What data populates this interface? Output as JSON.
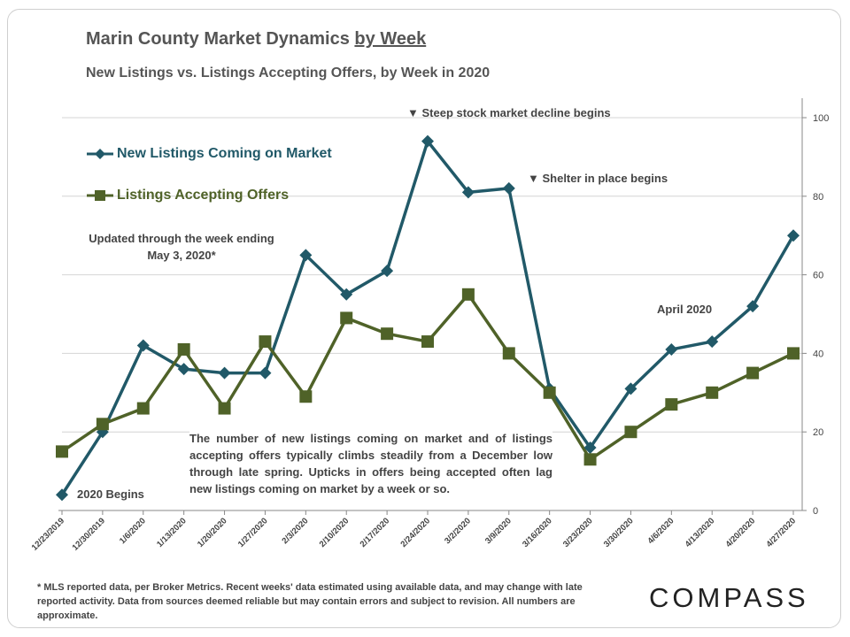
{
  "header": {
    "title_main": "Marin County Market Dynamics ",
    "title_underlined": "by Week",
    "subtitle": "New Listings vs. Listings Accepting Offers, by Week in 2020"
  },
  "annotations": {
    "stock_market": "▼ Steep stock market decline begins",
    "shelter": "▼ Shelter in place begins",
    "updated": "Updated through the week ending May 3, 2020*",
    "april": "April 2020",
    "begins": "2020 Begins",
    "body": "The number of new listings coming on market and of listings accepting offers typically climbs steadily from a December low through late spring. Upticks in offers being accepted often lag new listings coming on market by a week or so."
  },
  "footnote": "* MLS reported data, per Broker Metrics. Recent weeks' data estimated using available data, and may change with late reported activity. Data from sources deemed reliable but may contain errors and subject to revision. All numbers are approximate.",
  "brand": "COMPASS",
  "colors": {
    "new_listings": "#215968",
    "accepting_offers": "#4f6228"
  },
  "chart_data": {
    "type": "line",
    "categories": [
      "12/23/2019",
      "12/30/2019",
      "1/6/2020",
      "1/13/2020",
      "1/20/2020",
      "1/27/2020",
      "2/3/2020",
      "2/10/2020",
      "2/17/2020",
      "2/24/2020",
      "3/2/2020",
      "3/9/2020",
      "3/16/2020",
      "3/23/2020",
      "3/30/2020",
      "4/6/2020",
      "4/13/2020",
      "4/20/2020",
      "4/27/2020"
    ],
    "series": [
      {
        "name": "New Listings Coming on Market",
        "marker": "diamond",
        "values": [
          4,
          20,
          42,
          36,
          35,
          35,
          65,
          55,
          61,
          94,
          81,
          82,
          31,
          16,
          31,
          41,
          43,
          52,
          70
        ]
      },
      {
        "name": "Listings Accepting Offers",
        "marker": "square",
        "values": [
          15,
          22,
          26,
          41,
          26,
          43,
          29,
          49,
          45,
          43,
          55,
          40,
          30,
          13,
          20,
          27,
          30,
          35,
          40
        ]
      }
    ],
    "ylim": [
      0,
      100
    ],
    "yticks": [
      0,
      20,
      40,
      60,
      80,
      100
    ],
    "y_axis_side": "right",
    "grid": true,
    "legend": "top-left"
  }
}
